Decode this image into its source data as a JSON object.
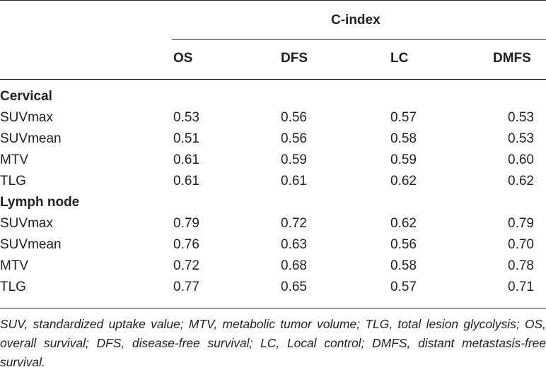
{
  "table": {
    "group_header": "C-index",
    "columns": [
      "OS",
      "DFS",
      "LC",
      "DMFS"
    ],
    "sections": [
      {
        "title": "Cervical",
        "rows": [
          {
            "label": "SUVmax",
            "values": [
              "0.53",
              "0.56",
              "0.57",
              "0.53"
            ]
          },
          {
            "label": "SUVmean",
            "values": [
              "0.51",
              "0.56",
              "0.58",
              "0.53"
            ]
          },
          {
            "label": "MTV",
            "values": [
              "0.61",
              "0.59",
              "0.59",
              "0.60"
            ]
          },
          {
            "label": "TLG",
            "values": [
              "0.61",
              "0.61",
              "0.62",
              "0.62"
            ]
          }
        ]
      },
      {
        "title": "Lymph node",
        "rows": [
          {
            "label": "SUVmax",
            "values": [
              "0.79",
              "0.72",
              "0.62",
              "0.79"
            ]
          },
          {
            "label": "SUVmean",
            "values": [
              "0.76",
              "0.63",
              "0.56",
              "0.70"
            ]
          },
          {
            "label": "MTV",
            "values": [
              "0.72",
              "0.68",
              "0.58",
              "0.78"
            ]
          },
          {
            "label": "TLG",
            "values": [
              "0.77",
              "0.65",
              "0.57",
              "0.71"
            ]
          }
        ]
      }
    ],
    "footnote": "SUV, standardized uptake value; MTV, metabolic tumor volume; TLG, total lesion glycolysis; OS, overall survival; DFS, disease-free survival; LC, Local control; DMFS, distant metastasis-free survival."
  }
}
